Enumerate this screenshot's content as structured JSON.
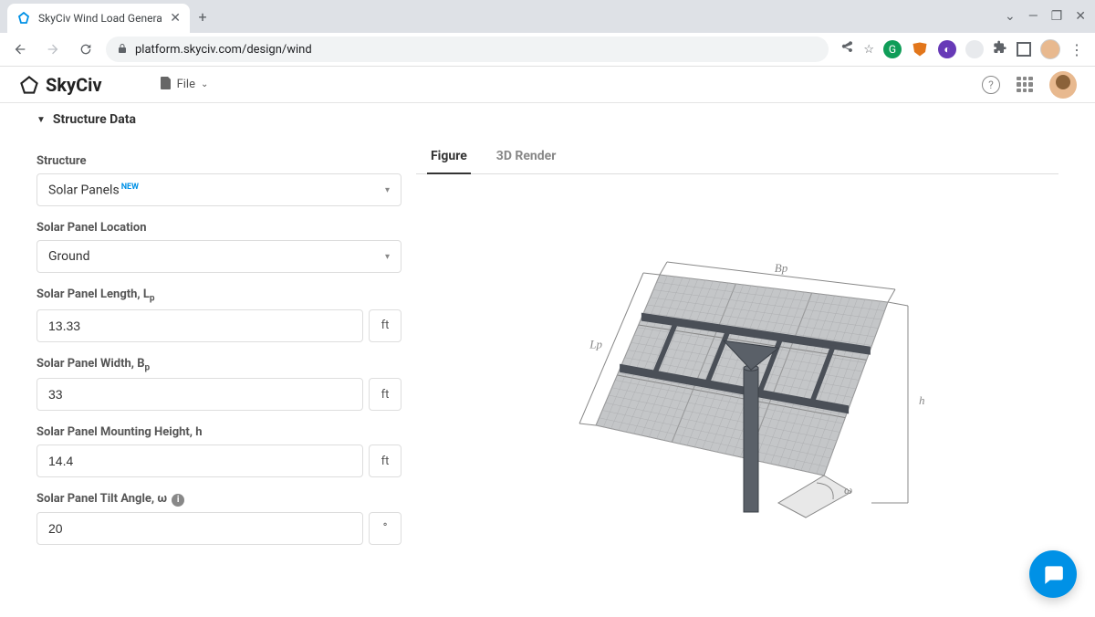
{
  "browser": {
    "tab_title": "SkyCiv Wind Load Genera",
    "url_display": "platform.skyciv.com/design/wind",
    "colors": {
      "tab_strip_bg": "#dee1e6",
      "omnibox_bg": "#f1f3f4"
    }
  },
  "app": {
    "brand": "SkyCiv",
    "file_menu_label": "File",
    "colors": {
      "accent": "#0091e6",
      "border": "#e5e5e5",
      "text_muted": "#888"
    }
  },
  "section": {
    "title": "Structure Data"
  },
  "form": {
    "structure": {
      "label": "Structure",
      "value": "Solar Panels",
      "badge": "NEW"
    },
    "location": {
      "label": "Solar Panel Location",
      "value": "Ground"
    },
    "length": {
      "label_text": "Solar Panel Length, L",
      "label_sub": "p",
      "value": "13.33",
      "unit": "ft"
    },
    "width": {
      "label_text": "Solar Panel Width, B",
      "label_sub": "p",
      "value": "33",
      "unit": "ft"
    },
    "height": {
      "label_text": "Solar Panel Mounting Height, h",
      "value": "14.4",
      "unit": "ft"
    },
    "tilt": {
      "label_text": "Solar Panel Tilt Angle, ω",
      "value": "20",
      "unit": "°"
    }
  },
  "viz": {
    "tabs": {
      "figure": "Figure",
      "render": "3D Render"
    },
    "active_tab": "figure",
    "figure": {
      "type": "isometric-diagram",
      "labels": {
        "Bp": "Bp",
        "Lp": "Lp",
        "h": "h",
        "omega": "ω"
      },
      "panel_fill": "#c4c6c8",
      "grid_color": "#888888",
      "frame_color": "#4a4f57",
      "pole_color": "#5a6068",
      "dim_color": "#888888",
      "dim_font": "italic 13px serif"
    }
  }
}
